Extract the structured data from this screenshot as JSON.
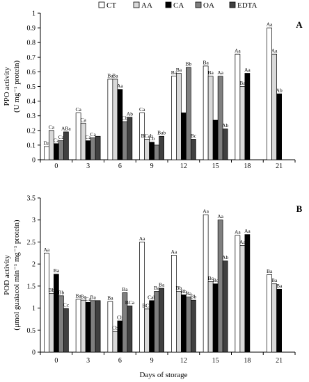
{
  "legend": [
    {
      "name": "CT",
      "fill": "#ffffff"
    },
    {
      "name": "AA",
      "fill": "#d9d9d9"
    },
    {
      "name": "CA",
      "fill": "#000000"
    },
    {
      "name": "OA",
      "fill": "#7f7f7f"
    },
    {
      "name": "EDTA",
      "fill": "#404040"
    }
  ],
  "xlabel": "Days of storage",
  "chart_data": [
    {
      "type": "bar",
      "panel": "A",
      "ylabel": [
        "PPO activity",
        "(U mg⁻¹ protein)"
      ],
      "ylim": [
        0,
        1
      ],
      "yticks": [
        0,
        0.1,
        0.2,
        0.3,
        0.4,
        0.5,
        0.6,
        0.7,
        0.8,
        0.9,
        1
      ],
      "ytick_labels": [
        "0",
        "0.1",
        "0.2",
        "0.3",
        "0.4",
        "0.5",
        "0.6",
        "0.7",
        "0.8",
        "0.9",
        "1"
      ],
      "categories": [
        "0",
        "3",
        "6",
        "9",
        "12",
        "15",
        "18",
        "21"
      ],
      "series": [
        {
          "name": "CT",
          "values": [
            0.09,
            0.32,
            0.55,
            0.32,
            0.57,
            0.64,
            0.72,
            0.9
          ]
        },
        {
          "name": "AA",
          "values": [
            0.2,
            0.25,
            0.55,
            0.14,
            0.59,
            0.57,
            0.5,
            0.72
          ]
        },
        {
          "name": "CA",
          "values": [
            0.11,
            0.13,
            0.48,
            0.12,
            0.32,
            0.27,
            0.59,
            0.45
          ]
        },
        {
          "name": "OA",
          "values": [
            0.13,
            0.15,
            0.26,
            0.1,
            0.63,
            0.57,
            null,
            null
          ]
        },
        {
          "name": "EDTA",
          "values": [
            0.19,
            0.16,
            0.29,
            0.16,
            0.14,
            0.21,
            null,
            null
          ]
        }
      ],
      "letters": [
        [
          "Da",
          "Ca",
          "Ba",
          "Ca",
          "Ba",
          "Ba",
          "Aa",
          "Aa"
        ],
        [
          "Ca",
          "Ca",
          "Ba",
          "BCab",
          "Ba",
          "Ba",
          "Ba",
          "Aa"
        ],
        [
          "Ca",
          "Ca",
          "Aa",
          "Cb",
          "",
          "",
          "Aa",
          "Ab"
        ],
        [
          "Ca",
          "Ca",
          "Cb",
          "",
          "Bb",
          "Aa",
          "",
          ""
        ],
        [
          "ABa",
          "",
          "Ab",
          "Bab",
          "Bc",
          "Ab",
          "",
          ""
        ]
      ]
    },
    {
      "type": "bar",
      "panel": "B",
      "ylabel": [
        "POD activity",
        "(μmol guaiacol min⁻¹ mg⁻¹ protein)"
      ],
      "ylim": [
        0,
        3.5
      ],
      "yticks": [
        0,
        0.5,
        1,
        1.5,
        2,
        2.5,
        3,
        3.5
      ],
      "ytick_labels": [
        "0",
        "0.5",
        "1",
        "1.5",
        "2",
        "2.5",
        "3",
        "3.5"
      ],
      "categories": [
        "0",
        "3",
        "6",
        "9",
        "12",
        "15",
        "18",
        "21"
      ],
      "series": [
        {
          "name": "CT",
          "values": [
            2.25,
            1.2,
            1.15,
            2.5,
            2.2,
            3.12,
            2.65,
            1.76
          ]
        },
        {
          "name": "AA",
          "values": [
            1.33,
            1.18,
            0.47,
            0.98,
            1.38,
            1.6,
            2.42,
            1.55
          ]
        },
        {
          "name": "CA",
          "values": [
            1.77,
            1.13,
            0.71,
            1.17,
            1.3,
            1.55,
            2.67,
            1.43
          ]
        },
        {
          "name": "OA",
          "values": [
            1.28,
            1.17,
            1.35,
            1.38,
            1.25,
            3.0,
            null,
            null
          ]
        },
        {
          "name": "EDTA",
          "values": [
            0.99,
            1.17,
            1.05,
            1.45,
            1.18,
            2.07,
            null,
            null
          ]
        }
      ],
      "letters": [
        [
          "Aa",
          "Ba",
          "Ba",
          "Aa",
          "Aa",
          "Aa",
          "Aa",
          "Ba"
        ],
        [
          "Bb",
          "Ba",
          "Cb",
          "BCb",
          "Bb",
          "Bc",
          "Aa",
          "Ba"
        ],
        [
          "Ba",
          "Ca",
          "Cb",
          "Cab",
          "Bb",
          "Bc",
          "Aa",
          "Ba"
        ],
        [
          "Bb",
          "Ba",
          "Ba",
          "Ba",
          "Ba",
          "Aa",
          "",
          ""
        ],
        [
          "Cc",
          "",
          "BCa",
          "Ba",
          "Bb",
          "Ab",
          "",
          ""
        ]
      ]
    }
  ]
}
